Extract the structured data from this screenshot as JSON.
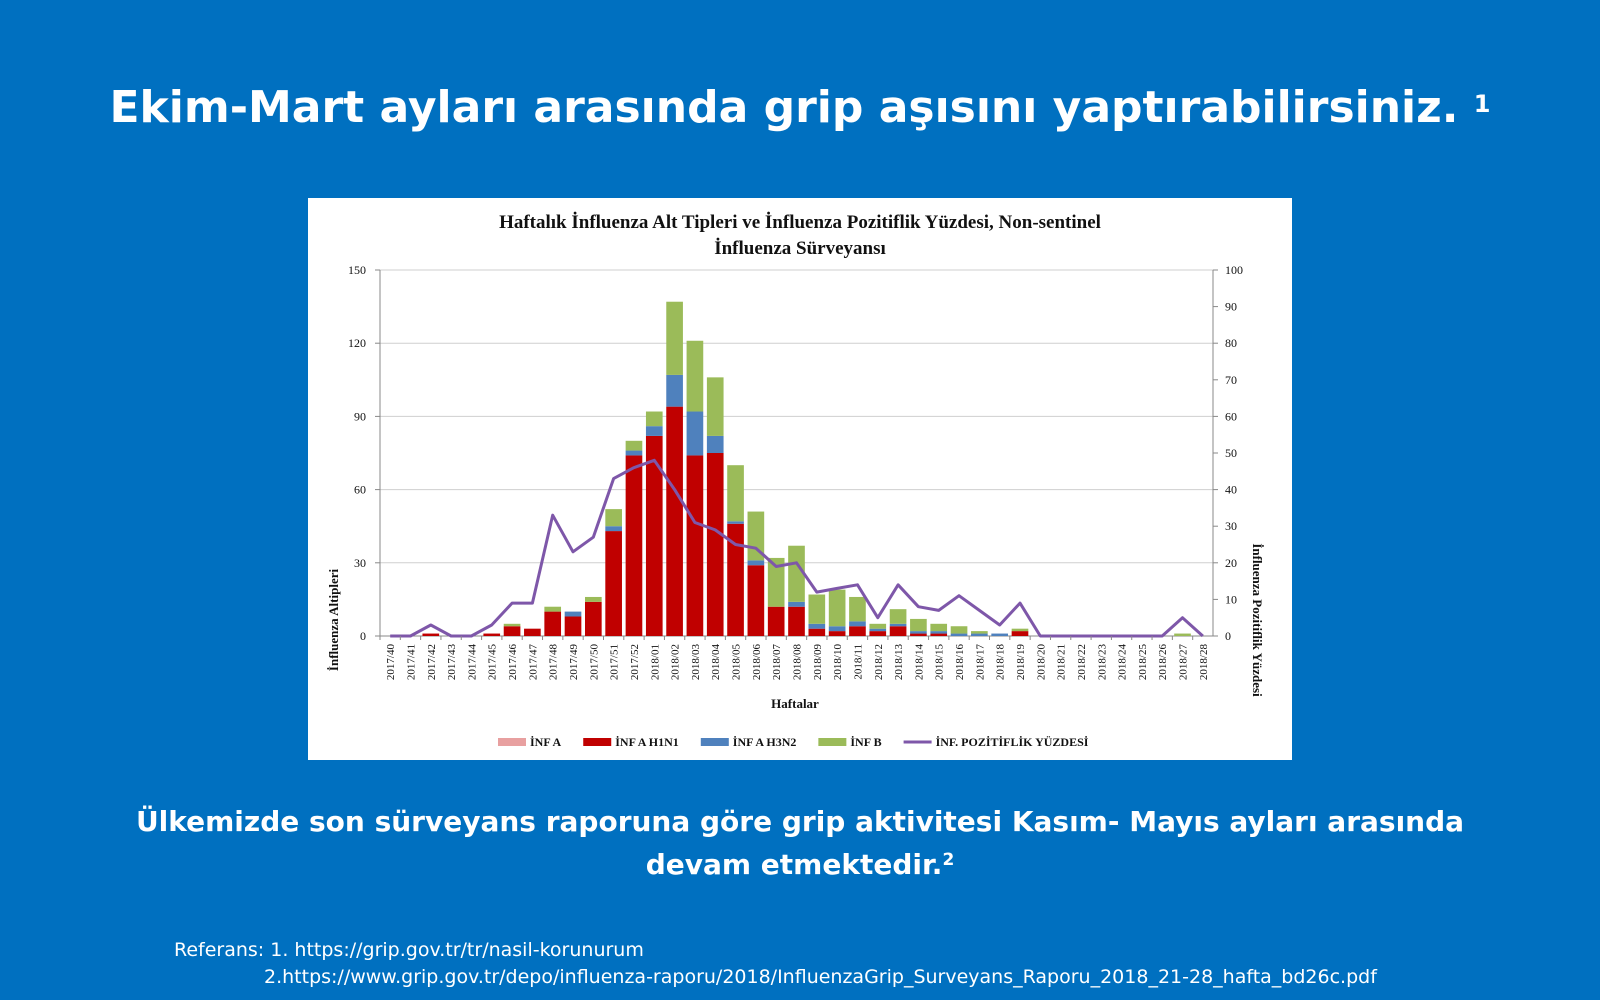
{
  "slide": {
    "title": "Ekim-Mart ayları arasında grip aşısını yaptırabilirsiniz.",
    "title_sup": "1",
    "body_line1": "Ülkemizde son sürveyans raporuna göre grip aktivitesi Kasım- Mayıs ayları arasında",
    "body_line2": "devam etmektedir.",
    "body_sup": "2",
    "ref_line1": "Referans: 1. https://grip.gov.tr/tr/nasil-korunurum",
    "ref_line2": "2.https://www.grip.gov.tr/depo/influenza-raporu/2018/InfluenzaGrip_Surveyans_Raporu_2018_21-28_hafta_bd26c.pdf",
    "background_color": "#0070c0"
  },
  "chart_data": {
    "type": "bar",
    "stacked": true,
    "title_line1": "Haftalık İnfluenza Alt Tipleri ve İnfluenza Pozitiflik Yüzdesi, Non-sentinel",
    "title_line2": "İnfluenza Sürveyansı",
    "xlabel": "Haftalar",
    "ylabel": "İnfluenza Altipleri",
    "y2label": "İnfluenza Pozitiflik Yüzdesi",
    "ylim": [
      0,
      150
    ],
    "y2lim": [
      0,
      100
    ],
    "yticks": [
      "0",
      "30",
      "60",
      "90",
      "120",
      "150"
    ],
    "y2ticks": [
      "0",
      "10",
      "20",
      "30",
      "40",
      "50",
      "60",
      "70",
      "80",
      "90",
      "100"
    ],
    "grid": true,
    "legend_position": "bottom",
    "categories": [
      "2017/40",
      "2017/41",
      "2017/42",
      "2017/43",
      "2017/44",
      "2017/45",
      "2017/46",
      "2017/47",
      "2017/48",
      "2017/49",
      "2017/50",
      "2017/51",
      "2017/52",
      "2018/01",
      "2018/02",
      "2018/03",
      "2018/04",
      "2018/05",
      "2018/06",
      "2018/07",
      "2018/08",
      "2018/09",
      "2018/10",
      "2018/11",
      "2018/12",
      "2018/13",
      "2018/14",
      "2018/15",
      "2018/16",
      "2018/17",
      "2018/18",
      "2018/19",
      "2018/20",
      "2018/21",
      "2018/22",
      "2018/23",
      "2018/24",
      "2018/25",
      "2018/26",
      "2018/27",
      "2018/28"
    ],
    "series": [
      {
        "name": "İNF A",
        "color": "#e8a0a0",
        "axis": "left",
        "kind": "bar",
        "values": [
          0,
          0,
          0,
          0,
          0,
          0,
          0,
          0,
          0,
          0,
          0,
          0,
          0,
          0,
          0,
          0,
          0,
          0,
          0,
          0,
          0,
          0,
          0,
          0,
          0,
          0,
          0,
          0,
          0,
          0,
          0,
          0,
          0,
          0,
          0,
          0,
          0,
          0,
          0,
          0,
          0
        ]
      },
      {
        "name": "İNF A H1N1",
        "color": "#c00000",
        "axis": "left",
        "kind": "bar",
        "values": [
          0,
          0,
          1,
          0,
          0,
          1,
          4,
          3,
          10,
          8,
          14,
          43,
          74,
          82,
          94,
          74,
          75,
          46,
          29,
          12,
          12,
          3,
          2,
          4,
          2,
          4,
          1,
          1,
          0,
          0,
          0,
          2,
          0,
          0,
          0,
          0,
          0,
          0,
          0,
          0,
          0
        ]
      },
      {
        "name": "İNF A H3N2",
        "color": "#4f81bd",
        "axis": "left",
        "kind": "bar",
        "values": [
          0,
          0,
          0,
          0,
          0,
          0,
          0,
          0,
          0,
          2,
          0,
          2,
          2,
          4,
          13,
          18,
          7,
          1,
          2,
          0,
          2,
          2,
          2,
          2,
          1,
          1,
          1,
          1,
          1,
          1,
          1,
          0,
          0,
          0,
          0,
          0,
          0,
          0,
          0,
          0,
          0
        ]
      },
      {
        "name": "İNF B",
        "color": "#9bbb59",
        "axis": "left",
        "kind": "bar",
        "values": [
          0,
          0,
          0,
          0,
          0,
          0,
          1,
          0,
          2,
          0,
          2,
          7,
          4,
          6,
          30,
          29,
          24,
          23,
          20,
          20,
          23,
          12,
          15,
          10,
          2,
          6,
          5,
          3,
          3,
          1,
          0,
          1,
          0,
          0,
          0,
          0,
          0,
          0,
          0,
          1,
          0
        ]
      },
      {
        "name": "İNF. POZİTİFLİK YÜZDESİ",
        "color": "#7e57a9",
        "axis": "right",
        "kind": "line",
        "values": [
          0,
          0,
          3,
          0,
          0,
          3,
          9,
          9,
          33,
          23,
          27,
          43,
          46,
          48,
          40,
          31,
          29,
          25,
          24,
          19,
          20,
          12,
          13,
          14,
          5,
          14,
          8,
          7,
          11,
          7,
          3,
          9,
          0,
          0,
          0,
          0,
          0,
          0,
          0,
          5,
          0
        ]
      }
    ]
  }
}
